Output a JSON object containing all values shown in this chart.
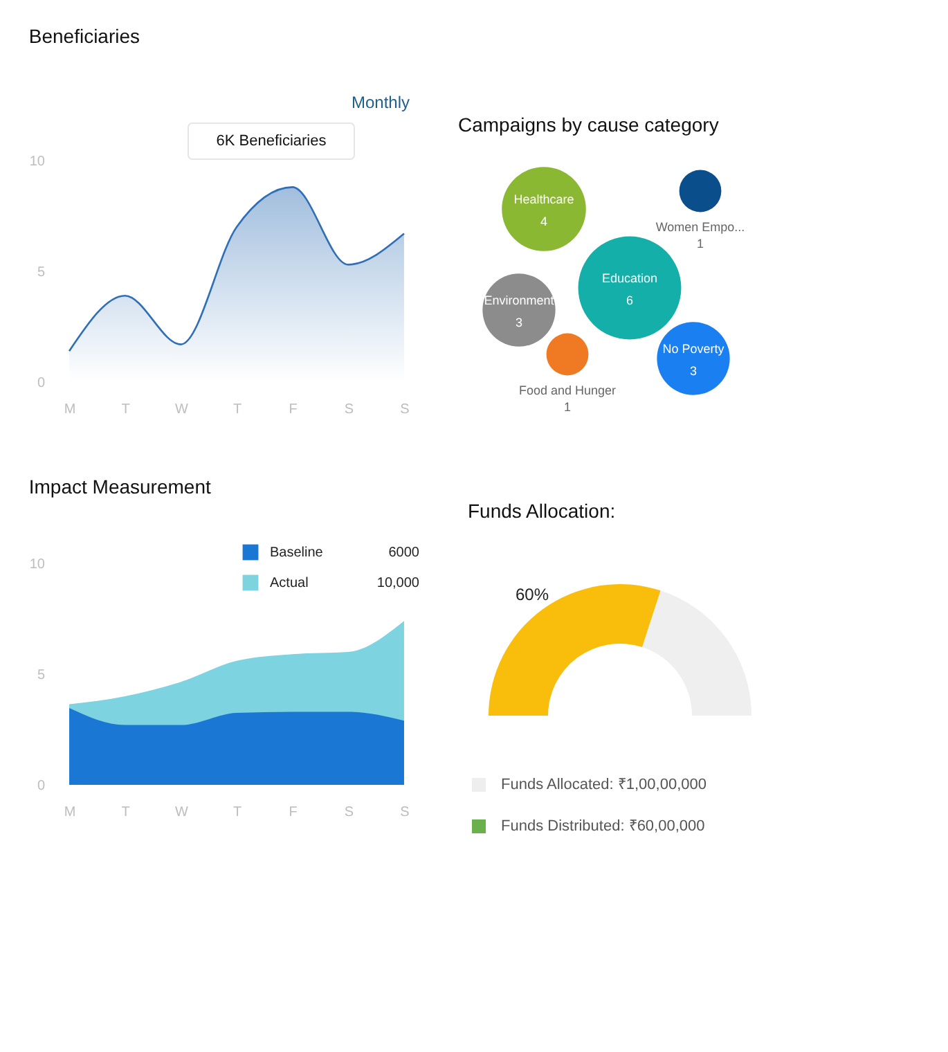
{
  "chart_data": [
    {
      "type": "area",
      "title": "Beneficiaries",
      "subtitle": "Monthly",
      "categories": [
        "M",
        "T",
        "W",
        "T",
        "F",
        "S",
        "S"
      ],
      "series": [
        {
          "color": "#2f6fb5",
          "values": [
            1.4,
            3.9,
            1.7,
            7.0,
            8.8,
            5.3,
            6.7
          ]
        }
      ],
      "ylim": [
        0,
        10
      ],
      "yticks": [
        0,
        5,
        10
      ],
      "grid": false,
      "annotations": [
        "6K Beneficiaries"
      ]
    },
    {
      "type": "other",
      "title": "Campaigns by cause category",
      "categories": [
        "Healthcare",
        "Women Empo...",
        "Education",
        "Environment",
        "Food and Hunger",
        "No Poverty"
      ],
      "values": [
        4,
        1,
        6,
        3,
        1,
        3
      ],
      "colors": [
        "#8ab833",
        "#0a4f8c",
        "#13afa8",
        "#8c8c8c",
        "#f07a24",
        "#1a7ff0"
      ],
      "data_labels": true
    },
    {
      "type": "area",
      "title": "Impact Measurement",
      "categories": [
        "M",
        "T",
        "W",
        "T",
        "F",
        "S",
        "S"
      ],
      "series": [
        {
          "name": "Baseline",
          "color": "#1a78d4",
          "values": [
            3.47,
            2.7,
            2.7,
            3.25,
            3.3,
            3.3,
            2.9
          ]
        },
        {
          "name": "Actual",
          "color": "#7dd3df",
          "values": [
            3.64,
            4.0,
            4.65,
            5.6,
            5.9,
            6.0,
            7.4
          ]
        }
      ],
      "ylim": [
        0,
        10
      ],
      "yticks": [
        0,
        5,
        10
      ],
      "grid": false,
      "legend": "top right",
      "annotations": [
        "6000",
        "10,000"
      ]
    },
    {
      "type": "donut",
      "title": "Funds Allocation:",
      "categories": [
        null,
        null
      ],
      "values": [
        60,
        40
      ],
      "colors": [
        "#f9bd0c",
        "#efefef"
      ],
      "value_labels": [
        "60%",
        null
      ],
      "annotations": [
        "Funds Allocated: ₹1,00,00,000",
        "Funds Distributed: ₹60,00,000"
      ]
    }
  ]
}
